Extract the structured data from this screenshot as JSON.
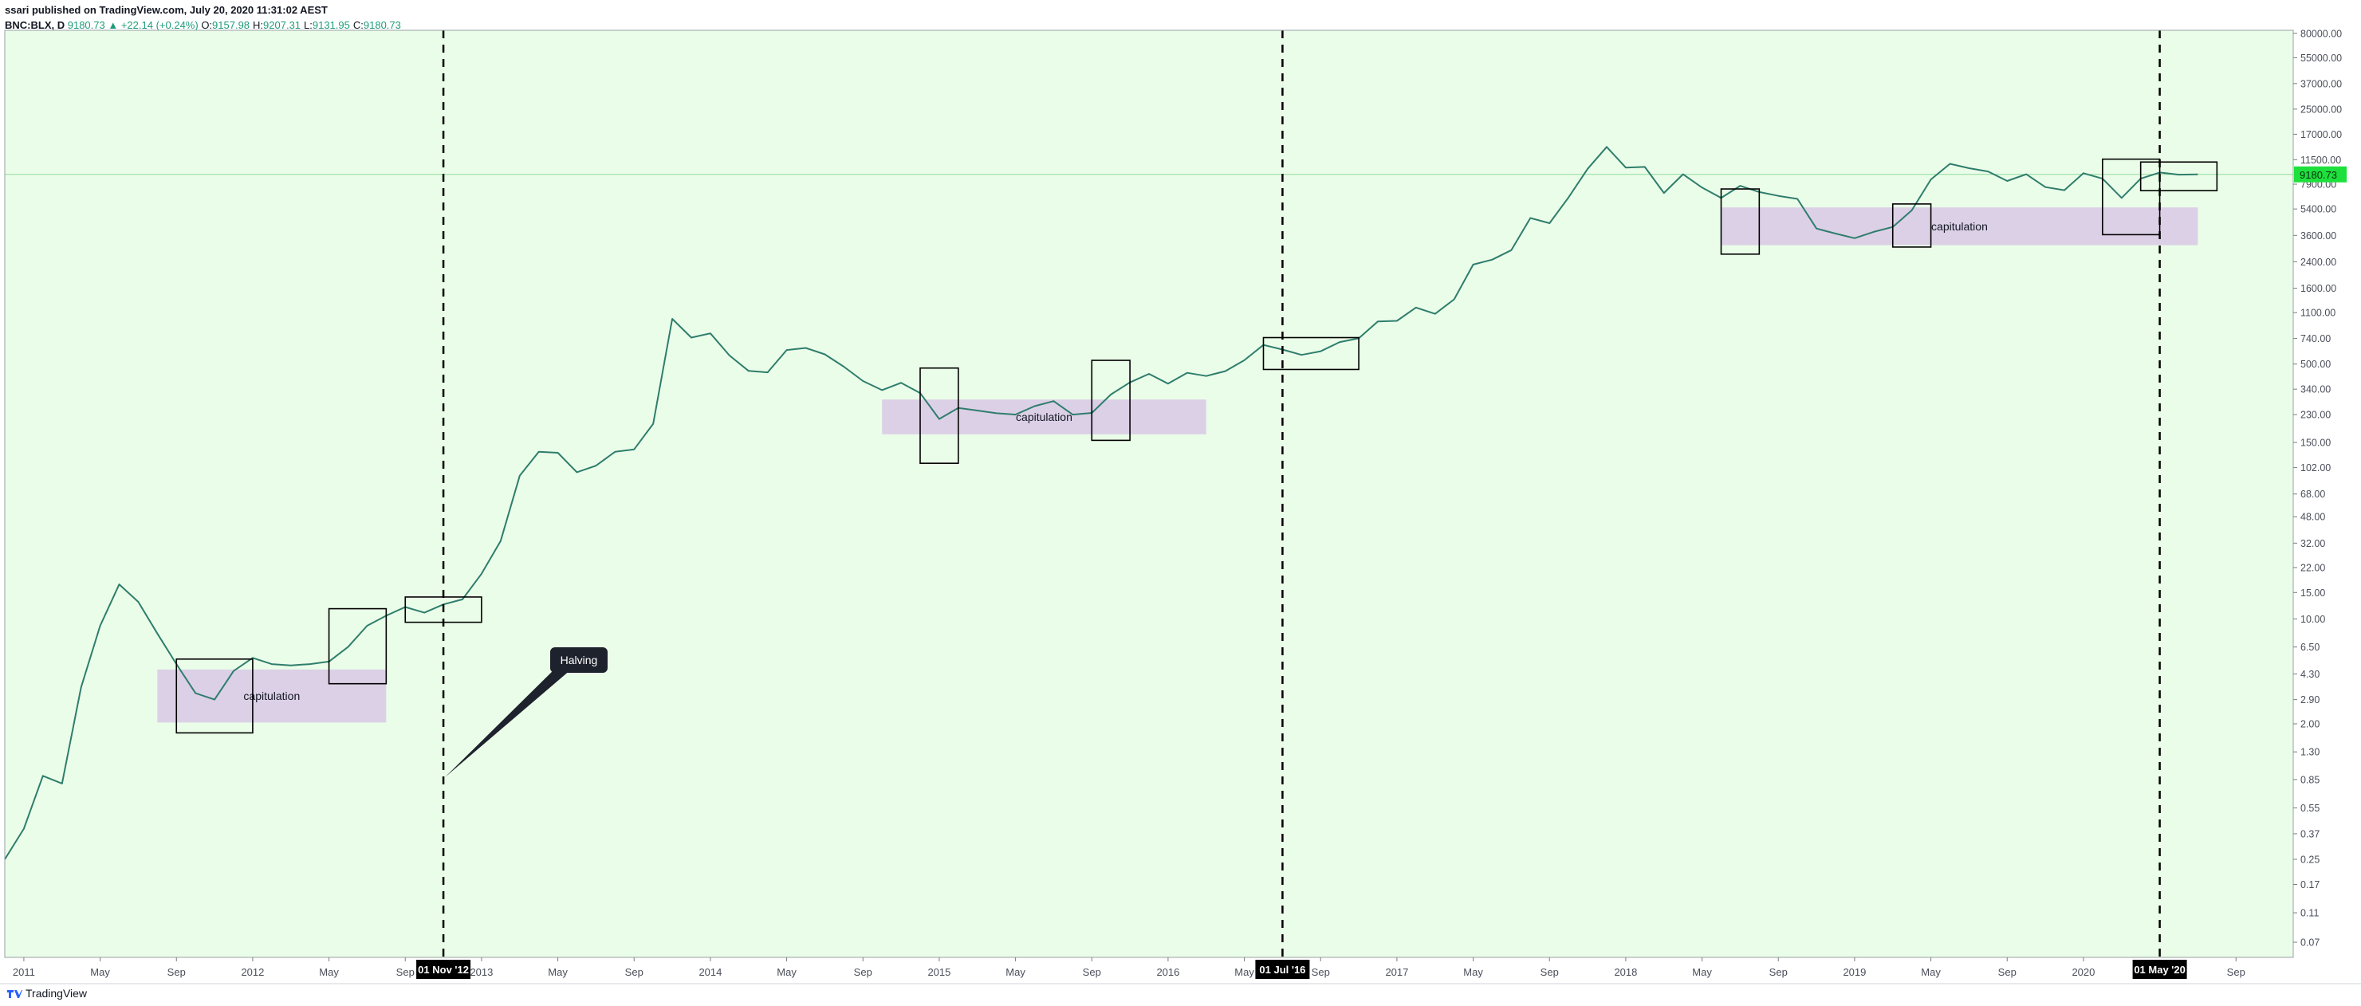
{
  "header": {
    "byline": "ssari published on TradingView.com, July 20, 2020 11:31:02 AEST",
    "symbol": "BNC:BLX, D",
    "change": "▲ +22.14 (+0.24%)",
    "ohlc": [
      {
        "key": "O:",
        "value": "9157.98"
      },
      {
        "key": "H:",
        "value": "9207.31"
      },
      {
        "key": "L:",
        "value": "9131.95"
      },
      {
        "key": "C:",
        "value": "9180.73"
      }
    ],
    "footer": "TradingView"
  },
  "chart_data": {
    "type": "line",
    "log_scale": true,
    "grid": false,
    "background": "#eafde8",
    "color": "#2f7d6d",
    "x": [
      "2010-12",
      "2011-01",
      "2011-02",
      "2011-03",
      "2011-04",
      "2011-05",
      "2011-06",
      "2011-07",
      "2011-08",
      "2011-09",
      "2011-10",
      "2011-11",
      "2011-12",
      "2012-01",
      "2012-02",
      "2012-03",
      "2012-04",
      "2012-05",
      "2012-06",
      "2012-07",
      "2012-08",
      "2012-09",
      "2012-10",
      "2012-11",
      "2012-12",
      "2013-01",
      "2013-02",
      "2013-03",
      "2013-04",
      "2013-05",
      "2013-06",
      "2013-07",
      "2013-08",
      "2013-09",
      "2013-10",
      "2013-11",
      "2013-12",
      "2014-01",
      "2014-02",
      "2014-03",
      "2014-04",
      "2014-05",
      "2014-06",
      "2014-07",
      "2014-08",
      "2014-09",
      "2014-10",
      "2014-11",
      "2014-12",
      "2015-01",
      "2015-02",
      "2015-03",
      "2015-04",
      "2015-05",
      "2015-06",
      "2015-07",
      "2015-08",
      "2015-09",
      "2015-10",
      "2015-11",
      "2015-12",
      "2016-01",
      "2016-02",
      "2016-03",
      "2016-04",
      "2016-05",
      "2016-06",
      "2016-07",
      "2016-08",
      "2016-09",
      "2016-10",
      "2016-11",
      "2016-12",
      "2017-01",
      "2017-02",
      "2017-03",
      "2017-04",
      "2017-05",
      "2017-06",
      "2017-07",
      "2017-08",
      "2017-09",
      "2017-10",
      "2017-11",
      "2017-12",
      "2018-01",
      "2018-02",
      "2018-03",
      "2018-04",
      "2018-05",
      "2018-06",
      "2018-07",
      "2018-08",
      "2018-09",
      "2018-10",
      "2018-11",
      "2018-12",
      "2019-01",
      "2019-02",
      "2019-03",
      "2019-04",
      "2019-05",
      "2019-06",
      "2019-07",
      "2019-08",
      "2019-09",
      "2019-10",
      "2019-11",
      "2019-12",
      "2020-01",
      "2020-02",
      "2020-03",
      "2020-04",
      "2020-05",
      "2020-06",
      "2020-07"
    ],
    "values": [
      0.25,
      0.4,
      0.9,
      0.8,
      3.5,
      9,
      17,
      13,
      8,
      5,
      3.2,
      2.9,
      4.5,
      5.5,
      5,
      4.9,
      5,
      5.2,
      6.5,
      9,
      10.5,
      12,
      11,
      12.5,
      13.5,
      20,
      33,
      90,
      130,
      128,
      95,
      105,
      130,
      135,
      200,
      1000,
      750,
      800,
      570,
      450,
      440,
      620,
      640,
      580,
      480,
      385,
      335,
      375,
      320,
      215,
      255,
      245,
      235,
      230,
      262,
      283,
      230,
      236,
      313,
      377,
      430,
      370,
      437,
      416,
      448,
      530,
      670,
      624,
      575,
      608,
      700,
      742,
      960,
      970,
      1190,
      1080,
      1350,
      2300,
      2480,
      2870,
      4700,
      4340,
      6450,
      10000,
      14000,
      10200,
      10300,
      6900,
      9200,
      7500,
      6400,
      7700,
      7000,
      6600,
      6300,
      4000,
      3700,
      3450,
      3800,
      4100,
      5300,
      8500,
      10800,
      10100,
      9600,
      8300,
      9200,
      7550,
      7200,
      9350,
      8600,
      6400,
      8600,
      9450,
      9140,
      9180.73
    ],
    "last_price": 9180.73,
    "xlim": [
      "2010-12",
      "2020-12"
    ],
    "xticks": [
      {
        "value": "2011-01",
        "label": "2011"
      },
      {
        "value": "2011-05",
        "label": "May"
      },
      {
        "value": "2011-09",
        "label": "Sep"
      },
      {
        "value": "2012-01",
        "label": "2012"
      },
      {
        "value": "2012-05",
        "label": "May"
      },
      {
        "value": "2012-09",
        "label": "Sep"
      },
      {
        "value": "2013-01",
        "label": "2013"
      },
      {
        "value": "2013-05",
        "label": "May"
      },
      {
        "value": "2013-09",
        "label": "Sep"
      },
      {
        "value": "2014-01",
        "label": "2014"
      },
      {
        "value": "2014-05",
        "label": "May"
      },
      {
        "value": "2014-09",
        "label": "Sep"
      },
      {
        "value": "2015-01",
        "label": "2015"
      },
      {
        "value": "2015-05",
        "label": "May"
      },
      {
        "value": "2015-09",
        "label": "Sep"
      },
      {
        "value": "2016-01",
        "label": "2016"
      },
      {
        "value": "2016-05",
        "label": "May"
      },
      {
        "value": "2016-09",
        "label": "Sep"
      },
      {
        "value": "2017-01",
        "label": "2017"
      },
      {
        "value": "2017-05",
        "label": "May"
      },
      {
        "value": "2017-09",
        "label": "Sep"
      },
      {
        "value": "2018-01",
        "label": "2018"
      },
      {
        "value": "2018-05",
        "label": "May"
      },
      {
        "value": "2018-09",
        "label": "Sep"
      },
      {
        "value": "2019-01",
        "label": "2019"
      },
      {
        "value": "2019-05",
        "label": "May"
      },
      {
        "value": "2019-09",
        "label": "Sep"
      },
      {
        "value": "2020-01",
        "label": "2020"
      },
      {
        "value": "2020-09",
        "label": "Sep"
      }
    ],
    "ylim": [
      0.0555,
      83800
    ],
    "yticks": [
      0.07,
      0.11,
      0.17,
      0.25,
      0.37,
      0.55,
      0.85,
      {
        "value": 1.3,
        "label": "1.30"
      },
      {
        "value": 2,
        "label": "2.00"
      },
      {
        "value": 2.9,
        "label": "2.90"
      },
      {
        "value": 4.3,
        "label": "4.30"
      },
      {
        "value": 6.5,
        "label": "6.50"
      },
      {
        "value": 10,
        "label": "10.00"
      },
      {
        "value": 15,
        "label": "15.00"
      },
      {
        "value": 22,
        "label": "22.00"
      },
      {
        "value": 32,
        "label": "32.00"
      },
      {
        "value": 48,
        "label": "48.00"
      },
      {
        "value": 68,
        "label": "68.00"
      },
      {
        "value": 102,
        "label": "102.00"
      },
      {
        "value": 150,
        "label": "150.00"
      },
      {
        "value": 230,
        "label": "230.00"
      },
      {
        "value": 340,
        "label": "340.00"
      },
      {
        "value": 500,
        "label": "500.00"
      },
      {
        "value": 740,
        "label": "740.00"
      },
      {
        "value": 1100,
        "label": "1100.00"
      },
      {
        "value": 1600,
        "label": "1600.00"
      },
      {
        "value": 2400,
        "label": "2400.00"
      },
      {
        "value": 3600,
        "label": "3600.00"
      },
      {
        "value": 5400,
        "label": "5400.00"
      },
      {
        "value": 7900,
        "label": "7900.00"
      },
      {
        "value": 11500,
        "label": "11500.00"
      },
      {
        "value": 17000,
        "label": "17000.00"
      },
      {
        "value": 25000,
        "label": "25000.00"
      },
      {
        "value": 37000,
        "label": "37000.00"
      },
      {
        "value": 55000,
        "label": "55000.00"
      },
      {
        "value": 80000,
        "label": "80000.00"
      }
    ],
    "halvings": [
      {
        "value": "2012-11",
        "label": "01 Nov '12"
      },
      {
        "value": "2016-07",
        "label": "01 Jul '16"
      },
      {
        "value": "2020-05",
        "label": "01 May '20"
      }
    ],
    "halving_note": "Halving",
    "zones": [
      {
        "label": "capitulation",
        "x": [
          "2011-08",
          "2012-08"
        ],
        "y": [
          2.04,
          4.6
        ]
      },
      {
        "label": "capitulation",
        "x": [
          "2014-10",
          "2016-03"
        ],
        "y": [
          170,
          290
        ]
      },
      {
        "label": "capitulation",
        "x": [
          "2018-06",
          "2020-07"
        ],
        "y": [
          3100,
          5530
        ]
      }
    ],
    "boxes": [
      {
        "x": [
          "2011-09",
          "2012-01"
        ],
        "y": [
          1.74,
          5.4
        ]
      },
      {
        "x": [
          "2012-05",
          "2012-08"
        ],
        "y": [
          3.7,
          11.7
        ]
      },
      {
        "x": [
          "2012-09",
          "2013-01"
        ],
        "y": [
          9.5,
          14
        ]
      },
      {
        "x": [
          "2014-12",
          "2015-02"
        ],
        "y": [
          109,
          470
        ]
      },
      {
        "x": [
          "2015-09",
          "2015-11"
        ],
        "y": [
          155,
          529
        ]
      },
      {
        "x": [
          "2016-06",
          "2016-11"
        ],
        "y": [
          460,
          750
        ]
      },
      {
        "x": [
          "2018-06",
          "2018-08"
        ],
        "y": [
          2700,
          7340
        ]
      },
      {
        "x": [
          "2019-03",
          "2019-05"
        ],
        "y": [
          3010,
          5830
        ]
      },
      {
        "x": [
          "2020-02",
          "2020-05"
        ],
        "y": [
          3640,
          11600
        ]
      },
      {
        "x": [
          "2020-04",
          "2020-08"
        ],
        "y": [
          7150,
          11100
        ]
      }
    ]
  }
}
